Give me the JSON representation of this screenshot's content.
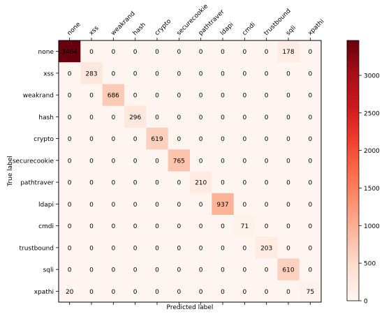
{
  "chart_data": {
    "type": "heatmap",
    "title": "",
    "xlabel": "Predicted label",
    "ylabel": "True label",
    "x_categories": [
      "none",
      "xss",
      "weakrand",
      "hash",
      "crypto",
      "securecookie",
      "pathtraver",
      "ldapi",
      "cmdi",
      "trustbound",
      "sqli",
      "xpathi"
    ],
    "y_categories": [
      "none",
      "xss",
      "weakrand",
      "hash",
      "crypto",
      "securecookie",
      "pathtraver",
      "ldapi",
      "cmdi",
      "trustbound",
      "sqli",
      "xpathi"
    ],
    "values": [
      [
        3464,
        0,
        0,
        0,
        0,
        0,
        0,
        0,
        0,
        0,
        178,
        0
      ],
      [
        0,
        283,
        0,
        0,
        0,
        0,
        0,
        0,
        0,
        0,
        0,
        0
      ],
      [
        0,
        0,
        686,
        0,
        0,
        0,
        0,
        0,
        0,
        0,
        0,
        0
      ],
      [
        0,
        0,
        0,
        296,
        0,
        0,
        0,
        0,
        0,
        0,
        0,
        0
      ],
      [
        0,
        0,
        0,
        0,
        619,
        0,
        0,
        0,
        0,
        0,
        0,
        0
      ],
      [
        0,
        0,
        0,
        0,
        0,
        765,
        0,
        0,
        0,
        0,
        0,
        0
      ],
      [
        0,
        0,
        0,
        0,
        0,
        0,
        210,
        0,
        0,
        0,
        0,
        0
      ],
      [
        0,
        0,
        0,
        0,
        0,
        0,
        0,
        937,
        0,
        0,
        0,
        0
      ],
      [
        0,
        0,
        0,
        0,
        0,
        0,
        0,
        0,
        71,
        0,
        0,
        0
      ],
      [
        0,
        0,
        0,
        0,
        0,
        0,
        0,
        0,
        0,
        203,
        0,
        0
      ],
      [
        0,
        0,
        0,
        0,
        0,
        0,
        0,
        0,
        0,
        0,
        610,
        0
      ],
      [
        20,
        0,
        0,
        0,
        0,
        0,
        0,
        0,
        0,
        0,
        0,
        75
      ]
    ],
    "colormap": "Reds",
    "colorbar": {
      "min": 0,
      "max": 3464,
      "ticks": [
        0,
        500,
        1000,
        1500,
        2000,
        2500,
        3000
      ]
    },
    "x_tick_position": "top",
    "grid": false
  }
}
